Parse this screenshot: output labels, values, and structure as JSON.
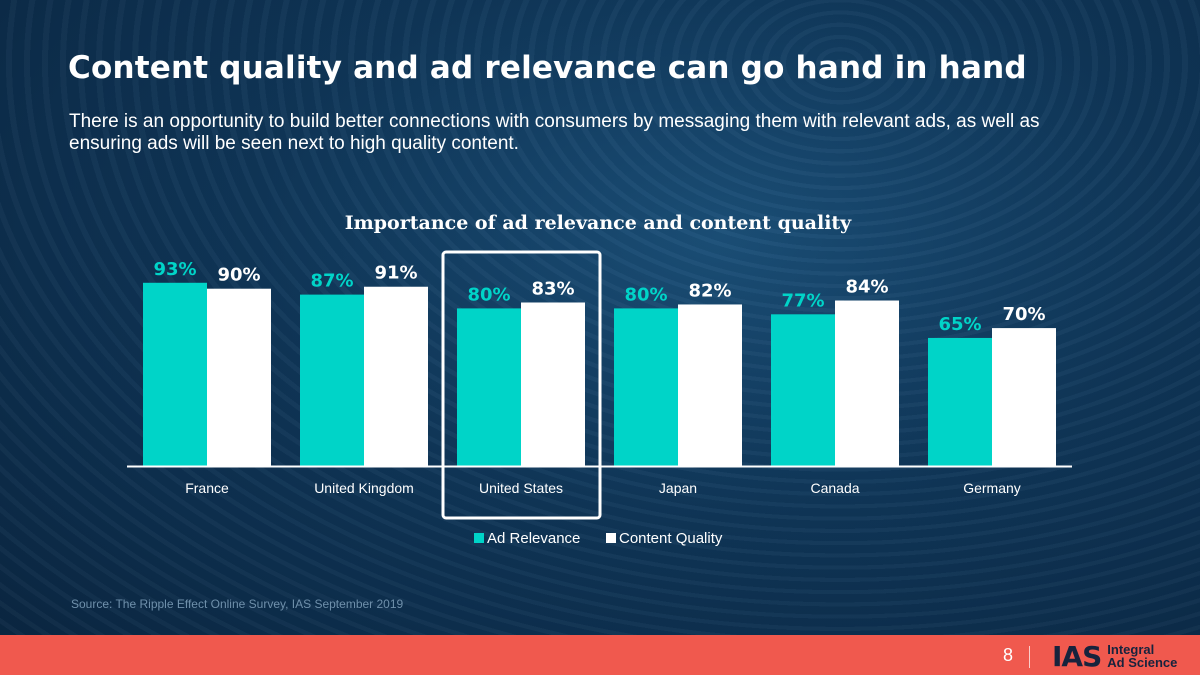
{
  "slide": {
    "title": "Content quality and ad relevance can go hand in hand",
    "subtitle": "There is an opportunity to build better connections with consumers by messaging them with relevant ads, as well as ensuring ads will be seen next to high quality content.",
    "source": "Source: The Ripple Effect Online Survey, IAS September 2019",
    "page_number": "8",
    "logo_mark": "IAS",
    "logo_line1": "Integral",
    "logo_line2": "Ad Science"
  },
  "colors": {
    "ad_relevance": "#00d4c8",
    "content_quality": "#ffffff",
    "footer": "#f0594e"
  },
  "chart_data": {
    "type": "bar",
    "title": "Importance of ad relevance and content quality",
    "categories": [
      "France",
      "United Kingdom",
      "United States",
      "Japan",
      "Canada",
      "Germany"
    ],
    "series": [
      {
        "name": "Ad Relevance",
        "values": [
          93,
          87,
          80,
          80,
          77,
          65
        ],
        "labels": [
          "93%",
          "87%",
          "80%",
          "80%",
          "77%",
          "65%"
        ]
      },
      {
        "name": "Content Quality",
        "values": [
          90,
          91,
          83,
          82,
          84,
          70
        ],
        "labels": [
          "90%",
          "91%",
          "83%",
          "82%",
          "84%",
          "70%"
        ]
      }
    ],
    "highlighted_category": "United States",
    "ylim": [
      0,
      100
    ],
    "xlabel": "",
    "ylabel": "",
    "grid": false,
    "legend": "bottom"
  }
}
